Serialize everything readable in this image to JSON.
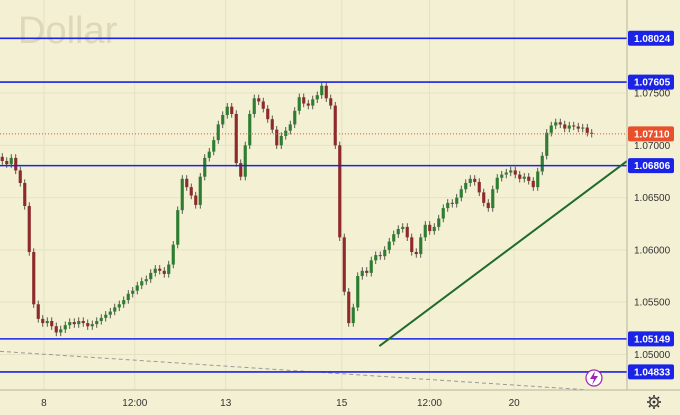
{
  "chart_data": {
    "type": "candlestick",
    "title": "",
    "watermark": "Dollar",
    "y_ticks": [
      1.05,
      1.055,
      1.06,
      1.065,
      1.07,
      1.075
    ],
    "y_tick_labels": [
      "1.05000",
      "1.05500",
      "1.06000",
      "1.06500",
      "1.07000",
      "1.07500"
    ],
    "ylim": [
      1.0466,
      1.0839
    ],
    "x_tick_labels": [
      "8",
      "12:00",
      "13",
      "15",
      "12:00",
      "20"
    ],
    "x_tick_positions": [
      0.07,
      0.215,
      0.36,
      0.545,
      0.685,
      0.82
    ],
    "horizontal_levels": [
      {
        "value": 1.08024,
        "label": "1.08024",
        "color": "#1a23e6"
      },
      {
        "value": 1.07605,
        "label": "1.07605",
        "color": "#1a23e6"
      },
      {
        "value": 1.06806,
        "label": "1.06806",
        "color": "#1a23e6"
      },
      {
        "value": 1.05149,
        "label": "1.05149",
        "color": "#1a23e6"
      },
      {
        "value": 1.04833,
        "label": "1.04833",
        "color": "#1a23e6"
      }
    ],
    "current_price": {
      "value": 1.0711,
      "label": "1.07110",
      "color": "#e84f2b"
    },
    "trend_line": {
      "x1": 0.605,
      "y1": 1.0508,
      "x2": 1.0,
      "y2": 1.0685,
      "color": "#1e6b2a"
    },
    "dashed_line": {
      "x1": 0.0,
      "y1": 1.0503,
      "x2": 0.94,
      "y2": 1.0466,
      "color": "#999999"
    },
    "close_series": [
      1.0685,
      1.0682,
      1.0688,
      1.0676,
      1.0664,
      1.0642,
      1.0598,
      1.0548,
      1.0534,
      1.053,
      1.0532,
      1.0527,
      1.0521,
      1.0524,
      1.0528,
      1.0531,
      1.0529,
      1.0532,
      1.053,
      1.0527,
      1.0529,
      1.0532,
      1.0535,
      1.0538,
      1.0541,
      1.0545,
      1.0548,
      1.0552,
      1.0558,
      1.0561,
      1.0566,
      1.057,
      1.0572,
      1.0578,
      1.0582,
      1.058,
      1.0577,
      1.0586,
      1.0605,
      1.0638,
      1.0668,
      1.066,
      1.0652,
      1.0643,
      1.067,
      1.0688,
      1.0694,
      1.0705,
      1.072,
      1.0729,
      1.0737,
      1.073,
      1.0683,
      1.067,
      1.07,
      1.073,
      1.0745,
      1.0742,
      1.0735,
      1.0725,
      1.0715,
      1.07,
      1.0709,
      1.0714,
      1.072,
      1.0733,
      1.0746,
      1.074,
      1.0738,
      1.0744,
      1.0748,
      1.0757,
      1.0745,
      1.0738,
      1.07,
      1.0612,
      1.056,
      1.053,
      1.0545,
      1.0575,
      1.058,
      1.0578,
      1.059,
      1.0595,
      1.0594,
      1.06,
      1.0608,
      1.0615,
      1.062,
      1.0622,
      1.0612,
      1.0598,
      1.0596,
      1.0612,
      1.0624,
      1.0618,
      1.0622,
      1.063,
      1.064,
      1.0645,
      1.0644,
      1.065,
      1.0658,
      1.0664,
      1.0668,
      1.0665,
      1.0655,
      1.0645,
      1.064,
      1.0658,
      1.0669,
      1.0672,
      1.0674,
      1.0676,
      1.0672,
      1.0668,
      1.067,
      1.0666,
      1.066,
      1.0675,
      1.069,
      1.0712,
      1.0719,
      1.0722,
      1.072,
      1.0716,
      1.0719,
      1.0718,
      1.0716,
      1.0717,
      1.0712,
      1.0711
    ]
  },
  "price_axis": {
    "settings_icon": "gear-icon"
  },
  "badge_icon": "lightning-icon"
}
